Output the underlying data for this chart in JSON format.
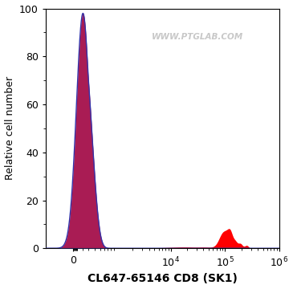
{
  "title": "",
  "xlabel": "CL647-65146 CD8 (SK1)",
  "ylabel": "Relative cell number",
  "ylim": [
    0,
    100
  ],
  "yticks": [
    0,
    20,
    40,
    60,
    80,
    100
  ],
  "watermark": "WWW.PTGLAB.COM",
  "watermark_color": "#c8c8c8",
  "fill_color_red": "#ff0000",
  "fill_color_blue": "#4040bb",
  "line_color_blue": "#3333aa",
  "bg_color": "#ffffff",
  "xlabel_fontsize": 10,
  "ylabel_fontsize": 9,
  "tick_fontsize": 9,
  "linthresh": 300,
  "linscale": 0.25
}
